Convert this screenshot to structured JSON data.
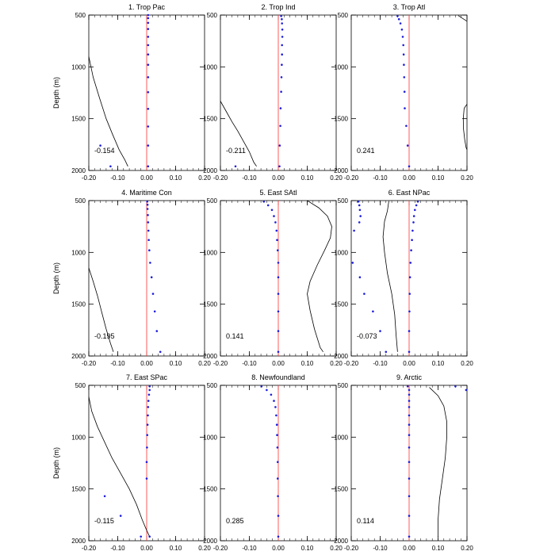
{
  "figure": {
    "ylabel": "Depth (m)",
    "colors": {
      "zero_line": "#ff4a4a",
      "points": "#1e1edc",
      "curve": "#000000",
      "axes": "#000000"
    }
  },
  "chart_data": [
    {
      "type": "scatter",
      "title": "1. Trop Pac",
      "xlim": [
        -0.2,
        0.2
      ],
      "ylim": [
        500,
        2000
      ],
      "xticks": [
        "-0.20",
        "-0.10",
        "0.00",
        "0.10",
        "0.20"
      ],
      "yticks": [
        "500",
        "1000",
        "1500",
        "2000"
      ],
      "correlation": "-0.154",
      "points": [
        [
          0.005,
          500
        ],
        [
          0.005,
          530
        ],
        [
          0.005,
          575
        ],
        [
          0.005,
          635
        ],
        [
          0.005,
          710
        ],
        [
          0.005,
          790
        ],
        [
          0.005,
          880
        ],
        [
          0.005,
          980
        ],
        [
          0.005,
          1100
        ],
        [
          0.005,
          1245
        ],
        [
          0.005,
          1405
        ],
        [
          0.005,
          1575
        ],
        [
          0.005,
          1760
        ],
        [
          -0.16,
          1760
        ],
        [
          -0.125,
          1960
        ],
        [
          0.005,
          1960
        ]
      ],
      "curve": [
        [
          -0.2,
          900
        ],
        [
          -0.185,
          1100
        ],
        [
          -0.163,
          1300
        ],
        [
          -0.14,
          1500
        ],
        [
          -0.118,
          1650
        ],
        [
          -0.095,
          1800
        ],
        [
          -0.075,
          1900
        ],
        [
          -0.065,
          1960
        ]
      ]
    },
    {
      "type": "scatter",
      "title": "2. Trop Ind",
      "xlim": [
        -0.2,
        0.2
      ],
      "ylim": [
        500,
        2000
      ],
      "xticks": [
        "-0.20",
        "-0.10",
        "0.00",
        "0.10",
        "0.20"
      ],
      "yticks": [
        "500",
        "1000",
        "1500",
        "2000"
      ],
      "correlation": "-0.211",
      "points": [
        [
          0.01,
          510
        ],
        [
          0.012,
          540
        ],
        [
          0.013,
          580
        ],
        [
          0.014,
          640
        ],
        [
          0.014,
          710
        ],
        [
          0.013,
          790
        ],
        [
          0.013,
          880
        ],
        [
          0.012,
          980
        ],
        [
          0.011,
          1100
        ],
        [
          0.01,
          1240
        ],
        [
          0.008,
          1400
        ],
        [
          0.007,
          1570
        ],
        [
          0.005,
          1760
        ],
        [
          0.004,
          1960
        ],
        [
          -0.148,
          1960
        ]
      ],
      "curve": [
        [
          -0.2,
          1330
        ],
        [
          -0.18,
          1430
        ],
        [
          -0.16,
          1530
        ],
        [
          -0.14,
          1620
        ],
        [
          -0.12,
          1720
        ],
        [
          -0.1,
          1820
        ],
        [
          -0.085,
          1920
        ],
        [
          -0.075,
          1960
        ]
      ]
    },
    {
      "type": "scatter",
      "title": "3. Trop Atl",
      "xlim": [
        -0.2,
        0.2
      ],
      "ylim": [
        500,
        2000
      ],
      "xticks": [
        "-0.20",
        "-0.10",
        "0.00",
        "0.10",
        "0.20"
      ],
      "yticks": [
        "500",
        "1000",
        "1500",
        "2000"
      ],
      "correlation": "0.241",
      "points": [
        [
          -0.04,
          510
        ],
        [
          -0.035,
          540
        ],
        [
          -0.03,
          580
        ],
        [
          -0.025,
          640
        ],
        [
          -0.022,
          710
        ],
        [
          -0.02,
          790
        ],
        [
          -0.019,
          880
        ],
        [
          -0.018,
          980
        ],
        [
          -0.017,
          1100
        ],
        [
          -0.016,
          1240
        ],
        [
          -0.015,
          1400
        ],
        [
          -0.01,
          1570
        ],
        [
          -0.005,
          1760
        ],
        [
          0,
          1960
        ]
      ],
      "curve_segments": [
        [
          [
            0.17,
            505
          ],
          [
            0.2,
            560
          ]
        ],
        [
          [
            0.2,
            1360
          ],
          [
            0.19,
            1400
          ],
          [
            0.187,
            1500
          ],
          [
            0.188,
            1600
          ],
          [
            0.192,
            1700
          ],
          [
            0.197,
            1780
          ],
          [
            0.2,
            1800
          ]
        ]
      ]
    },
    {
      "type": "scatter",
      "title": "4. Maritime Con",
      "xlim": [
        -0.2,
        0.2
      ],
      "ylim": [
        500,
        2000
      ],
      "xticks": [
        "-0.20",
        "-0.10",
        "0.00",
        "0.10",
        "0.20"
      ],
      "yticks": [
        "500",
        "1000",
        "1500",
        "2000"
      ],
      "correlation": "-0.195",
      "points": [
        [
          0.002,
          510
        ],
        [
          0.003,
          540
        ],
        [
          0.003,
          580
        ],
        [
          0.004,
          640
        ],
        [
          0.005,
          710
        ],
        [
          0.006,
          790
        ],
        [
          0.007,
          880
        ],
        [
          0.009,
          980
        ],
        [
          0.012,
          1100
        ],
        [
          0.017,
          1240
        ],
        [
          0.022,
          1400
        ],
        [
          0.028,
          1570
        ],
        [
          0.035,
          1760
        ],
        [
          0.047,
          1960
        ]
      ],
      "curve": [
        [
          -0.2,
          1150
        ],
        [
          -0.185,
          1280
        ],
        [
          -0.17,
          1420
        ],
        [
          -0.155,
          1580
        ],
        [
          -0.14,
          1740
        ],
        [
          -0.125,
          1880
        ],
        [
          -0.115,
          1960
        ]
      ]
    },
    {
      "type": "scatter",
      "title": "5. East SAtl",
      "xlim": [
        -0.2,
        0.2
      ],
      "ylim": [
        500,
        2000
      ],
      "xticks": [
        "-0.20",
        "-0.10",
        "0.00",
        "0.10",
        "0.20"
      ],
      "yticks": [
        "500",
        "1000",
        "1500",
        "2000"
      ],
      "correlation": "0.141",
      "points": [
        [
          -0.05,
          510
        ],
        [
          -0.035,
          545
        ],
        [
          -0.022,
          590
        ],
        [
          -0.015,
          650
        ],
        [
          -0.01,
          710
        ],
        [
          -0.006,
          790
        ],
        [
          -0.004,
          880
        ],
        [
          -0.002,
          980
        ],
        [
          0,
          1100
        ],
        [
          0,
          1240
        ],
        [
          0,
          1400
        ],
        [
          0,
          1570
        ],
        [
          0,
          1760
        ],
        [
          0,
          1960
        ]
      ],
      "curve": [
        [
          0.1,
          500
        ],
        [
          0.14,
          570
        ],
        [
          0.17,
          650
        ],
        [
          0.185,
          750
        ],
        [
          0.18,
          860
        ],
        [
          0.16,
          980
        ],
        [
          0.135,
          1120
        ],
        [
          0.11,
          1280
        ],
        [
          0.1,
          1400
        ],
        [
          0.11,
          1560
        ],
        [
          0.125,
          1740
        ],
        [
          0.145,
          1920
        ],
        [
          0.155,
          1960
        ]
      ]
    },
    {
      "type": "scatter",
      "title": "6. East NPac",
      "xlim": [
        -0.2,
        0.2
      ],
      "ylim": [
        500,
        2000
      ],
      "xticks": [
        "-0.20",
        "-0.10",
        "0.00",
        "0.10",
        "0.20"
      ],
      "yticks": [
        "500",
        "1000",
        "1500",
        "2000"
      ],
      "correlation": "-0.073",
      "points": [
        [
          -0.175,
          510
        ],
        [
          -0.172,
          545
        ],
        [
          -0.17,
          590
        ],
        [
          -0.168,
          650
        ],
        [
          -0.172,
          710
        ],
        [
          -0.19,
          790
        ],
        [
          -0.195,
          1100
        ],
        [
          -0.17,
          1240
        ],
        [
          -0.155,
          1400
        ],
        [
          -0.125,
          1570
        ],
        [
          -0.1,
          1760
        ],
        [
          -0.08,
          1960
        ],
        [
          0.03,
          510
        ],
        [
          0.025,
          545
        ],
        [
          0.02,
          590
        ],
        [
          0.017,
          650
        ],
        [
          0.015,
          710
        ],
        [
          0.012,
          790
        ],
        [
          0.01,
          880
        ],
        [
          0.007,
          980
        ],
        [
          0.005,
          1100
        ],
        [
          0.003,
          1240
        ],
        [
          0.002,
          1400
        ],
        [
          0.001,
          1570
        ],
        [
          0,
          1760
        ],
        [
          0,
          1960
        ]
      ],
      "curve": [
        [
          -0.07,
          505
        ],
        [
          -0.075,
          600
        ],
        [
          -0.085,
          700
        ],
        [
          -0.09,
          850
        ],
        [
          -0.085,
          1000
        ],
        [
          -0.075,
          1200
        ],
        [
          -0.06,
          1400
        ],
        [
          -0.05,
          1600
        ],
        [
          -0.045,
          1800
        ],
        [
          -0.04,
          1960
        ]
      ]
    },
    {
      "type": "scatter",
      "title": "7. East SPac",
      "xlim": [
        -0.2,
        0.2
      ],
      "ylim": [
        500,
        2000
      ],
      "xticks": [
        "-0.20",
        "-0.10",
        "0.00",
        "0.10",
        "0.20"
      ],
      "yticks": [
        "500",
        "1000",
        "1500",
        "2000"
      ],
      "correlation": "-0.115",
      "points": [
        [
          0.01,
          510
        ],
        [
          0.01,
          545
        ],
        [
          0.008,
          590
        ],
        [
          0.006,
          650
        ],
        [
          0.005,
          710
        ],
        [
          0.004,
          790
        ],
        [
          0.003,
          880
        ],
        [
          0.002,
          980
        ],
        [
          0.001,
          1100
        ],
        [
          0,
          1240
        ],
        [
          0,
          1400
        ],
        [
          -0.145,
          1570
        ],
        [
          -0.09,
          1760
        ],
        [
          -0.02,
          1960
        ],
        [
          0.01,
          1960
        ]
      ],
      "curve": [
        [
          -0.2,
          610
        ],
        [
          -0.19,
          750
        ],
        [
          -0.17,
          900
        ],
        [
          -0.145,
          1050
        ],
        [
          -0.12,
          1200
        ],
        [
          -0.09,
          1350
        ],
        [
          -0.06,
          1500
        ],
        [
          -0.035,
          1650
        ],
        [
          -0.015,
          1800
        ],
        [
          0,
          1900
        ],
        [
          0.01,
          1960
        ]
      ]
    },
    {
      "type": "scatter",
      "title": "8. Newfoundland",
      "xlim": [
        -0.2,
        0.2
      ],
      "ylim": [
        500,
        2000
      ],
      "xticks": [
        "-0.20",
        "-0.10",
        "0.00",
        "0.10",
        "0.20"
      ],
      "yticks": [
        "500",
        "1000",
        "1500",
        "2000"
      ],
      "correlation": "0.285",
      "points": [
        [
          -0.058,
          510
        ],
        [
          -0.04,
          545
        ],
        [
          -0.025,
          590
        ],
        [
          -0.015,
          650
        ],
        [
          -0.01,
          710
        ],
        [
          -0.007,
          790
        ],
        [
          -0.005,
          880
        ],
        [
          -0.004,
          980
        ],
        [
          -0.003,
          1100
        ],
        [
          -0.002,
          1240
        ],
        [
          -0.002,
          1400
        ],
        [
          -0.001,
          1570
        ],
        [
          0,
          1760
        ],
        [
          0,
          1960
        ]
      ]
    },
    {
      "type": "scatter",
      "title": "9. Arctic",
      "xlim": [
        -0.2,
        0.2
      ],
      "ylim": [
        500,
        2000
      ],
      "xticks": [
        "-0.20",
        "-0.10",
        "0.00",
        "0.10",
        "0.20"
      ],
      "yticks": [
        "500",
        "1000",
        "1500",
        "2000"
      ],
      "correlation": "0.114",
      "points": [
        [
          -0.005,
          510
        ],
        [
          0,
          545
        ],
        [
          0,
          590
        ],
        [
          0,
          650
        ],
        [
          0,
          710
        ],
        [
          0,
          790
        ],
        [
          0,
          880
        ],
        [
          0,
          980
        ],
        [
          0,
          1100
        ],
        [
          0,
          1240
        ],
        [
          0,
          1400
        ],
        [
          0,
          1570
        ],
        [
          0,
          1760
        ],
        [
          0,
          1960
        ],
        [
          0.16,
          510
        ],
        [
          0.197,
          545
        ]
      ],
      "curve": [
        [
          0.07,
          520
        ],
        [
          0.1,
          600
        ],
        [
          0.12,
          700
        ],
        [
          0.13,
          850
        ],
        [
          0.13,
          1000
        ],
        [
          0.125,
          1200
        ],
        [
          0.115,
          1400
        ],
        [
          0.105,
          1600
        ],
        [
          0.1,
          1800
        ],
        [
          0.1,
          1960
        ]
      ]
    }
  ]
}
